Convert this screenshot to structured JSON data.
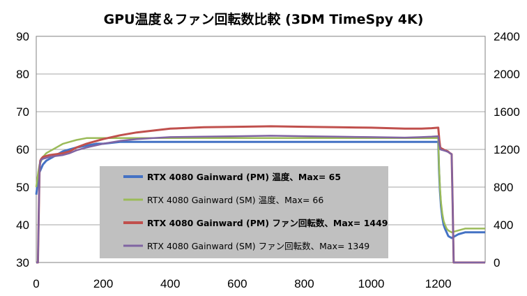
{
  "chart_data": {
    "type": "line",
    "title": "GPU温度＆ファン回転数比較 (3DM TimeSpy 4K)",
    "xlabel": "",
    "ylabel": "",
    "y2label": "",
    "xlim": [
      0,
      1340
    ],
    "ylim": [
      30,
      90
    ],
    "y2lim": [
      0,
      2400
    ],
    "x_ticks": [
      0,
      200,
      400,
      600,
      800,
      1000,
      1200
    ],
    "y_ticks": [
      30,
      40,
      50,
      60,
      70,
      80,
      90
    ],
    "y2_ticks": [
      0,
      400,
      800,
      1200,
      1600,
      2000,
      2400
    ],
    "grid": "horizontal",
    "legend_position": "center-left",
    "series": [
      {
        "name": "RTX 4080 Gainward (PM) 温度、Max= 65",
        "axis": "left",
        "color": "#4472c4",
        "bold": true,
        "x": [
          0,
          3,
          6,
          10,
          15,
          20,
          30,
          40,
          50,
          60,
          80,
          100,
          120,
          150,
          180,
          200,
          250,
          300,
          400,
          500,
          600,
          700,
          800,
          900,
          1000,
          1100,
          1150,
          1180,
          1200,
          1202,
          1205,
          1208,
          1212,
          1216,
          1220,
          1225,
          1230,
          1240,
          1260,
          1280,
          1300,
          1320,
          1340
        ],
        "values": [
          48,
          50,
          53,
          54,
          55,
          56,
          57,
          57.5,
          58,
          58.5,
          59.5,
          60,
          60.5,
          61,
          61.5,
          61.5,
          62,
          62,
          62,
          62,
          62,
          62,
          62,
          62,
          62,
          62,
          62,
          62,
          62,
          55,
          49,
          45,
          42,
          40,
          39,
          38,
          37,
          36.5,
          37.5,
          38,
          38,
          38,
          38
        ]
      },
      {
        "name": "RTX 4080 Gainward (SM) 温度、Max= 66",
        "axis": "left",
        "color": "#9bbb59",
        "bold": false,
        "x": [
          0,
          3,
          6,
          10,
          15,
          20,
          30,
          40,
          50,
          60,
          80,
          100,
          120,
          150,
          180,
          200,
          250,
          300,
          400,
          500,
          600,
          700,
          800,
          900,
          1000,
          1100,
          1150,
          1180,
          1200,
          1202,
          1205,
          1208,
          1212,
          1216,
          1220,
          1225,
          1230,
          1240,
          1260,
          1280,
          1300,
          1320,
          1340
        ],
        "values": [
          50,
          52,
          54,
          56,
          57,
          58,
          59,
          59.5,
          60,
          60.5,
          61.5,
          62,
          62.5,
          63,
          63,
          63,
          63,
          63,
          63,
          63,
          63,
          63,
          63,
          63,
          63,
          63,
          63,
          63,
          63,
          56,
          50,
          46,
          43,
          41,
          40,
          39,
          38.5,
          38,
          38.5,
          39,
          39,
          39,
          39
        ]
      },
      {
        "name": "RTX 4080 Gainward (PM) ファン回転数、Max= 1449",
        "axis": "right",
        "color": "#c0504d",
        "bold": true,
        "x": [
          0,
          5,
          8,
          10,
          12,
          15,
          20,
          30,
          40,
          60,
          80,
          100,
          120,
          150,
          200,
          250,
          300,
          350,
          400,
          500,
          600,
          700,
          800,
          900,
          1000,
          1100,
          1150,
          1180,
          1200,
          1203,
          1206,
          1210,
          1215,
          1220,
          1228,
          1235,
          1240,
          1243,
          1246,
          1250,
          1280,
          1300,
          1320,
          1340
        ],
        "values": [
          0,
          0,
          600,
          1000,
          1080,
          1100,
          1120,
          1130,
          1140,
          1150,
          1160,
          1180,
          1220,
          1260,
          1310,
          1350,
          1380,
          1400,
          1420,
          1435,
          1440,
          1445,
          1440,
          1435,
          1430,
          1420,
          1420,
          1425,
          1430,
          1300,
          1220,
          1210,
          1200,
          1190,
          1180,
          1160,
          1150,
          600,
          0,
          0,
          0,
          0,
          0,
          0
        ]
      },
      {
        "name": "RTX 4080 Gainward (SM) ファン回転数、Max= 1349",
        "axis": "right",
        "color": "#8064a2",
        "bold": false,
        "x": [
          0,
          5,
          8,
          10,
          12,
          15,
          20,
          30,
          40,
          60,
          80,
          100,
          120,
          150,
          200,
          250,
          300,
          350,
          400,
          500,
          600,
          700,
          800,
          900,
          1000,
          1100,
          1150,
          1180,
          1200,
          1203,
          1206,
          1210,
          1215,
          1220,
          1228,
          1235,
          1240,
          1243,
          1246,
          1250,
          1280,
          1300,
          1320,
          1340
        ],
        "values": [
          0,
          0,
          600,
          1000,
          1070,
          1090,
          1100,
          1110,
          1120,
          1130,
          1140,
          1160,
          1190,
          1220,
          1260,
          1290,
          1310,
          1320,
          1330,
          1335,
          1340,
          1345,
          1340,
          1335,
          1330,
          1325,
          1330,
          1335,
          1340,
          1250,
          1200,
          1195,
          1190,
          1185,
          1175,
          1160,
          1150,
          600,
          0,
          0,
          0,
          0,
          0,
          0
        ]
      }
    ]
  }
}
